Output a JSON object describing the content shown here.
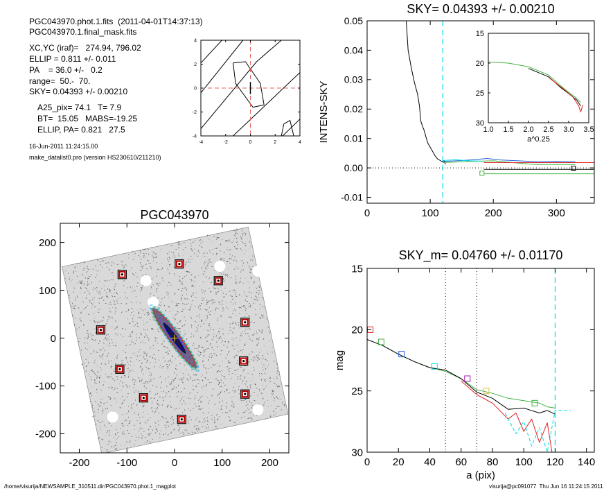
{
  "header": {
    "line1": "PGC043970.phot.1.fits  (2011-04-01T14:37:13)",
    "line2": "PGC043970.1.final_mask.fits",
    "xc": "XC,YC (iraf)=   274.94, 796.02",
    "ellip": "ELLIP = 0.811 +/- 0.011",
    "pa": "PA    = 36.0 +/-   0.2",
    "range": "range=  50.-  70.",
    "sky": "SKY= 0.04393 +/- 0.00210",
    "a25": "A25_pix= 74.1   T= 7.9",
    "bt": "BT=  15.05   MABS=-19.25",
    "ellip_pa": "ELLIP, PA= 0.821   27.5",
    "date": "16-Jun-2011 11:24:15.00",
    "program": "make_datalist0.pro (version HS230610/211210)"
  },
  "footer": {
    "left": "/home/visurija/NEWSAMPLE_310511.dir/PGC043970.phot.1_magplot",
    "right": "visurija@pc091077  Thu Jun 16 11:24:15 2011"
  },
  "chart_data": [
    {
      "id": "contour",
      "type": "line",
      "title": "",
      "xlim": [
        -4,
        4
      ],
      "ylim": [
        -4,
        4
      ],
      "x_ticks": [
        -4,
        -2,
        0,
        2,
        4
      ],
      "y_ticks": [
        -4,
        -2,
        0,
        2,
        4
      ],
      "series": [
        {
          "values": [
            [
              -4,
              2.1
            ],
            [
              -2.3,
              4
            ]
          ]
        },
        {
          "values": [
            [
              -4,
              -0.4
            ],
            [
              -0.6,
              4
            ]
          ]
        },
        {
          "values": [
            [
              -4,
              -3.4
            ],
            [
              0.5,
              2.2
            ],
            [
              2.5,
              4
            ]
          ]
        },
        {
          "values": [
            [
              -1.4,
              -4
            ],
            [
              4,
              1.3
            ]
          ]
        },
        {
          "values": [
            [
              2.6,
              -4
            ],
            [
              4,
              -2.6
            ]
          ]
        },
        {
          "values": [
            [
              -1.4,
              2.1
            ],
            [
              -0.4,
              2.2
            ],
            [
              0.8,
              0.4
            ],
            [
              1.1,
              -1.4
            ],
            [
              0.2,
              -1.6
            ],
            [
              -1.2,
              0.4
            ],
            [
              -1.4,
              2.1
            ]
          ]
        },
        {
          "values": [
            [
              2.5,
              -4
            ],
            [
              2.7,
              -3.0
            ],
            [
              3.2,
              -2.7
            ],
            [
              3.5,
              -4
            ]
          ]
        }
      ],
      "crosshair": {
        "x": 0,
        "y": 0,
        "color": "#e06060"
      }
    },
    {
      "id": "sky_profile",
      "type": "line",
      "title": "SKY= 0.04393 +/- 0.00210",
      "ylabel": "INTENS-SKY",
      "xlim": [
        0,
        360
      ],
      "ylim": [
        -0.012,
        0.05
      ],
      "x_ticks": [
        0,
        100,
        200,
        300
      ],
      "y_ticks": [
        -0.01,
        0.0,
        0.01,
        0.02,
        0.03,
        0.04,
        0.05
      ],
      "vline": {
        "x": 120,
        "color": "#00d8e8"
      },
      "series": [
        {
          "name": "",
          "color": "#000000",
          "values": [
            [
              62,
              0.05
            ],
            [
              65,
              0.04
            ],
            [
              70,
              0.034
            ],
            [
              75,
              0.029
            ],
            [
              80,
              0.025
            ],
            [
              83,
              0.021
            ],
            [
              85,
              0.016
            ],
            [
              88,
              0.014
            ],
            [
              90,
              0.013
            ],
            [
              92,
              0.0115
            ],
            [
              94,
              0.01
            ],
            [
              96,
              0.0085
            ],
            [
              100,
              0.007
            ],
            [
              104,
              0.0055
            ],
            [
              108,
              0.004
            ],
            [
              112,
              0.003
            ],
            [
              116,
              0.0025
            ],
            [
              120,
              0.002
            ],
            [
              122,
              0.0025
            ],
            [
              124,
              0.0012
            ]
          ]
        },
        {
          "name": "",
          "color": "#1f5fd8",
          "values": [
            [
              120,
              0.0022
            ],
            [
              150,
              0.0025
            ],
            [
              170,
              0.0028
            ],
            [
              190,
              0.0032
            ],
            [
              210,
              0.0027
            ],
            [
              240,
              0.0024
            ],
            [
              270,
              0.0021
            ],
            [
              300,
              0.0022
            ],
            [
              330,
              0.0021
            ]
          ]
        },
        {
          "name": "",
          "color": "#40b040",
          "values": [
            [
              120,
              0.0018
            ],
            [
              160,
              0.0022
            ],
            [
              200,
              0.0024
            ],
            [
              240,
              0.0016
            ],
            [
              270,
              0.0011
            ],
            [
              300,
              0.0012
            ],
            [
              330,
              0.0011
            ]
          ]
        },
        {
          "name": "",
          "color": "#00d8e8",
          "values": [
            [
              120,
              0.0025
            ],
            [
              140,
              0.0028
            ],
            [
              160,
              0.0024
            ],
            [
              180,
              0.0023
            ]
          ]
        },
        {
          "name": "",
          "color": "#e02020",
          "values": [
            [
              185,
              0.0018
            ],
            [
              360,
              0.0018
            ]
          ]
        },
        {
          "name": "",
          "color": "#000000",
          "values": [
            [
              185,
              -0.0005
            ],
            [
              360,
              -0.0005
            ]
          ]
        },
        {
          "name": "",
          "color": "#40b040",
          "values": [
            [
              185,
              -0.002
            ],
            [
              360,
              -0.002
            ]
          ]
        }
      ],
      "markers": [
        {
          "x": 182,
          "y": -0.0018,
          "color": "#40b040"
        },
        {
          "x": 327,
          "y": -0.0001,
          "color": "#000000"
        }
      ],
      "inset": {
        "xlabel": "a^0.25",
        "xlim": [
          1.0,
          3.5
        ],
        "ylim": [
          15,
          30
        ],
        "x_ticks": [
          1.0,
          1.5,
          2.0,
          2.5,
          3.0,
          3.5
        ],
        "y_ticks": [
          15,
          20,
          25,
          30
        ],
        "series": [
          {
            "color": "#40b040",
            "values": [
              [
                1.0,
                19.8
              ],
              [
                1.5,
                20.0
              ],
              [
                2.0,
                20.6
              ],
              [
                2.5,
                22.0
              ],
              [
                2.8,
                23.8
              ],
              [
                3.0,
                24.9
              ],
              [
                3.2,
                25.9
              ],
              [
                3.3,
                26.6
              ]
            ]
          },
          {
            "color": "#000000",
            "values": [
              [
                2.0,
                20.9
              ],
              [
                2.5,
                22.3
              ],
              [
                2.8,
                24.1
              ],
              [
                3.0,
                25.1
              ],
              [
                3.2,
                26.2
              ],
              [
                3.3,
                27.2
              ]
            ]
          },
          {
            "color": "#e02020",
            "values": [
              [
                2.5,
                22.4
              ],
              [
                2.9,
                24.5
              ],
              [
                3.1,
                25.6
              ],
              [
                3.25,
                27.2
              ],
              [
                3.3,
                28.2
              ],
              [
                3.35,
                27.0
              ]
            ]
          }
        ]
      }
    },
    {
      "id": "image",
      "type": "scatter",
      "title": "PGC043970",
      "xlim": [
        -240,
        240
      ],
      "ylim": [
        -240,
        240
      ],
      "x_ticks": [
        -200,
        -100,
        0,
        100,
        200
      ],
      "y_ticks": [
        -200,
        -100,
        0,
        100,
        200
      ],
      "masked_stars": [
        [
          -110,
          133
        ],
        [
          10,
          155
        ],
        [
          92,
          120
        ],
        [
          -155,
          17
        ],
        [
          148,
          33
        ],
        [
          -115,
          -65
        ],
        [
          145,
          -48
        ],
        [
          -65,
          -125
        ],
        [
          148,
          -117
        ],
        [
          15,
          -170
        ]
      ],
      "ellipses": [
        {
          "color": "#40c0ff",
          "a": 85,
          "b": 14,
          "pa": 36
        },
        {
          "color": "#40b040",
          "a": 80,
          "b": 12.5,
          "pa": 36
        },
        {
          "color": "#e02020",
          "a": 70,
          "b": 11,
          "pa": 36
        },
        {
          "color": "#8040c0",
          "a": 52,
          "b": 8.5,
          "pa": 36
        },
        {
          "color": "#0000c0",
          "a": 30,
          "b": 5,
          "pa": 36
        }
      ]
    },
    {
      "id": "mag_profile",
      "type": "line",
      "title": "SKY_m=  0.04760 +/- 0.01170",
      "xlabel": "a (pix)",
      "ylabel": "mag",
      "xlim": [
        0,
        145
      ],
      "ylim": [
        30,
        15
      ],
      "x_ticks": [
        0,
        20,
        40,
        60,
        80,
        100,
        120,
        140
      ],
      "y_ticks": [
        15,
        20,
        25,
        30
      ],
      "vlines": [
        {
          "x": 50,
          "color": "#000000",
          "style": "dotted"
        },
        {
          "x": 70,
          "color": "#000000",
          "style": "dotted"
        },
        {
          "x": 120,
          "color": "#00d8e8",
          "style": "dashed"
        }
      ],
      "series": [
        {
          "name": "",
          "color": "#40b040",
          "values": [
            [
              0,
              20.8
            ],
            [
              10,
              21.3
            ],
            [
              20,
              22.0
            ],
            [
              30,
              22.6
            ],
            [
              40,
              23.1
            ],
            [
              50,
              23.4
            ],
            [
              60,
              24.0
            ],
            [
              70,
              24.9
            ],
            [
              80,
              25.2
            ],
            [
              90,
              25.6
            ],
            [
              100,
              25.8
            ],
            [
              110,
              26.0
            ],
            [
              115,
              26.3
            ],
            [
              120,
              26.4
            ]
          ]
        },
        {
          "name": "",
          "color": "#000000",
          "values": [
            [
              0,
              20.8
            ],
            [
              10,
              21.3
            ],
            [
              20,
              22.0
            ],
            [
              30,
              22.6
            ],
            [
              40,
              23.1
            ],
            [
              50,
              23.3
            ],
            [
              60,
              24.0
            ],
            [
              70,
              25.1
            ],
            [
              80,
              25.6
            ],
            [
              90,
              26.5
            ],
            [
              100,
              26.4
            ],
            [
              110,
              26.8
            ],
            [
              115,
              26.6
            ],
            [
              120,
              26.9
            ]
          ]
        },
        {
          "name": "",
          "color": "#e02020",
          "values": [
            [
              60,
              24.2
            ],
            [
              70,
              25.3
            ],
            [
              80,
              26.0
            ],
            [
              90,
              27.3
            ],
            [
              95,
              26.8
            ],
            [
              100,
              28.3
            ],
            [
              105,
              27.3
            ],
            [
              110,
              29.2
            ],
            [
              115,
              27.6
            ],
            [
              118,
              30.0
            ]
          ]
        },
        {
          "name": "",
          "color": "#00d8e8",
          "dashed": true,
          "values": [
            [
              88,
              26.8
            ],
            [
              95,
              28.5
            ],
            [
              100,
              27.5
            ],
            [
              105,
              29.5
            ],
            [
              110,
              28.0
            ],
            [
              115,
              30.0
            ],
            [
              120,
              26.6
            ],
            [
              130,
              26.6
            ]
          ]
        }
      ],
      "markers": [
        {
          "x": 2,
          "y": 20.0,
          "color": "#e02020"
        },
        {
          "x": 9,
          "y": 21.0,
          "color": "#40b040"
        },
        {
          "x": 22,
          "y": 22.0,
          "color": "#1f5fd8"
        },
        {
          "x": 43,
          "y": 23.0,
          "color": "#00d8e8"
        },
        {
          "x": 64,
          "y": 24.0,
          "color": "#a020a0"
        },
        {
          "x": 76,
          "y": 25.0,
          "color": "#e0c030"
        },
        {
          "x": 107,
          "y": 26.0,
          "color": "#40b040"
        }
      ]
    }
  ]
}
